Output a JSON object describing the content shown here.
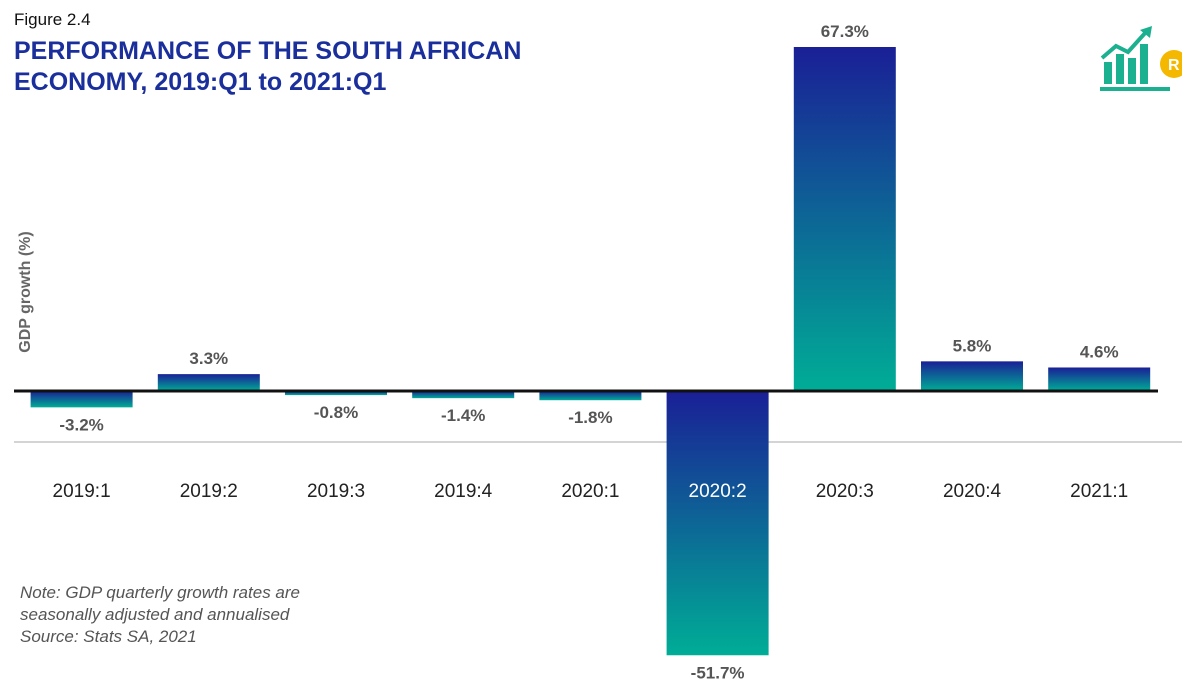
{
  "figure_label": "Figure 2.4",
  "title_main": "PERFORMANCE OF THE SOUTH AFRICAN ECONOMY,",
  "title_period": "2019:Q1 to 2021:Q1",
  "note_lines": [
    "Note: GDP quarterly growth rates are",
    "seasonally adjusted and annualised",
    "Source: Stats SA, 2021"
  ],
  "logo_icon": "growth-chart-rand-icon",
  "colors": {
    "title": "#1a2f9c",
    "bar_dark": "#1a1f96",
    "bar_light": "#00ad96",
    "value_label": "#555555",
    "logo_green": "#1bb08f",
    "logo_coin": "#f5b800"
  },
  "chart_data": {
    "type": "bar",
    "ylabel": "GDP growth (%)",
    "categories": [
      "2019:1",
      "2019:2",
      "2019:3",
      "2019:4",
      "2020:1",
      "2020:2",
      "2020:3",
      "2020:4",
      "2021:1"
    ],
    "values": [
      -3.2,
      3.3,
      -0.8,
      -1.4,
      -1.8,
      -51.7,
      67.3,
      5.8,
      4.6
    ],
    "data_labels": [
      "-3.2%",
      "3.3%",
      "-0.8%",
      "-1.4%",
      "-1.8%",
      "-51.7%",
      "67.3%",
      "5.8%",
      "4.6%"
    ],
    "highlighted_category": "2020:2",
    "ylim": [
      -51.7,
      67.3
    ],
    "grid": false,
    "legend": "none"
  }
}
